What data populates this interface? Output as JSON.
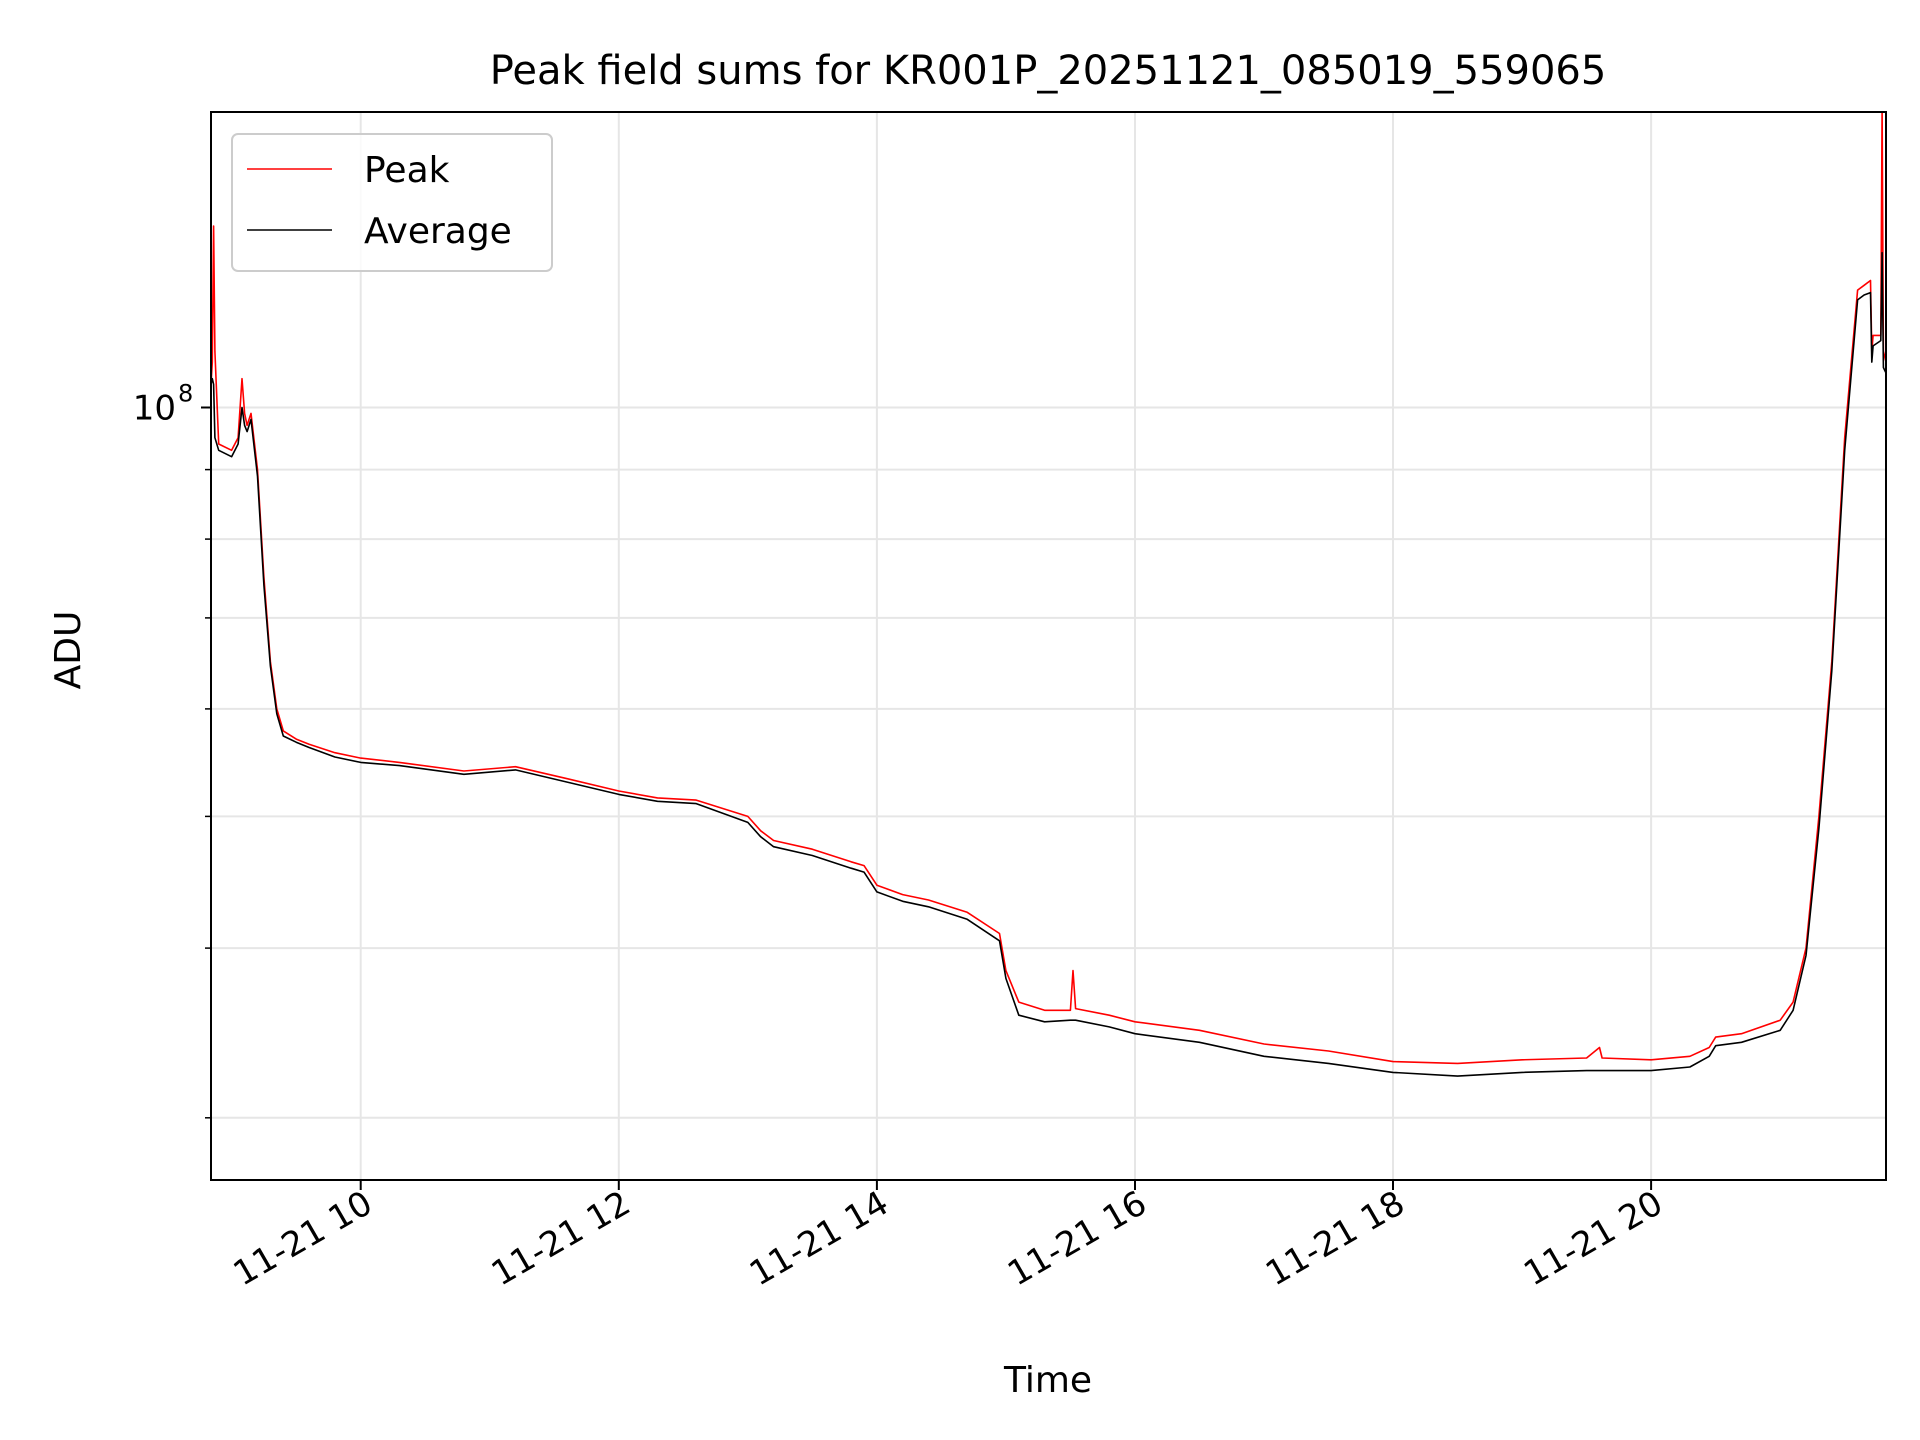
{
  "chart_data": {
    "type": "line",
    "title": "Peak field sums for KR001P_20251121_085019_559065",
    "xlabel": "Time",
    "ylabel": "ADU",
    "yscale": "log",
    "ytick_label": {
      "base": "10",
      "exponent": "8"
    },
    "xtick_labels": [
      "11-21 10",
      "11-21 12",
      "11-21 14",
      "11-21 16",
      "11-21 18",
      "11-21 20"
    ],
    "xtick_hours": [
      10,
      12,
      14,
      16,
      18,
      20
    ],
    "xlim_hours": [
      8.84,
      21.82
    ],
    "ylim": [
      27000000,
      165000000
    ],
    "grid": true,
    "legend": {
      "placement": "top-left",
      "entries": [
        "Peak",
        "Average"
      ]
    },
    "series": [
      {
        "name": "Peak",
        "color": "#ff0000",
        "points": [
          [
            8.84,
            104000000
          ],
          [
            8.85,
            108000000
          ],
          [
            8.86,
            136000000
          ],
          [
            8.87,
            110000000
          ],
          [
            8.9,
            94000000
          ],
          [
            9.0,
            93000000
          ],
          [
            9.05,
            95000000
          ],
          [
            9.08,
            105000000
          ],
          [
            9.1,
            99000000
          ],
          [
            9.12,
            97000000
          ],
          [
            9.15,
            99000000
          ],
          [
            9.2,
            90000000
          ],
          [
            9.25,
            75000000
          ],
          [
            9.3,
            65000000
          ],
          [
            9.35,
            60000000
          ],
          [
            9.4,
            57800000
          ],
          [
            9.5,
            57000000
          ],
          [
            9.6,
            56500000
          ],
          [
            9.8,
            55700000
          ],
          [
            10.0,
            55200000
          ],
          [
            10.3,
            54800000
          ],
          [
            10.8,
            54000000
          ],
          [
            11.2,
            54400000
          ],
          [
            11.6,
            53300000
          ],
          [
            12.0,
            52200000
          ],
          [
            12.3,
            51600000
          ],
          [
            12.6,
            51400000
          ],
          [
            13.0,
            50000000
          ],
          [
            13.1,
            48800000
          ],
          [
            13.2,
            48000000
          ],
          [
            13.5,
            47300000
          ],
          [
            13.8,
            46300000
          ],
          [
            13.9,
            46000000
          ],
          [
            14.0,
            44500000
          ],
          [
            14.2,
            43800000
          ],
          [
            14.4,
            43400000
          ],
          [
            14.7,
            42500000
          ],
          [
            14.95,
            41000000
          ],
          [
            15.0,
            38500000
          ],
          [
            15.1,
            36500000
          ],
          [
            15.3,
            36000000
          ],
          [
            15.5,
            36000000
          ],
          [
            15.52,
            38500000
          ],
          [
            15.54,
            36100000
          ],
          [
            15.8,
            35700000
          ],
          [
            16.0,
            35300000
          ],
          [
            16.5,
            34800000
          ],
          [
            17.0,
            34000000
          ],
          [
            17.5,
            33600000
          ],
          [
            18.0,
            33000000
          ],
          [
            18.5,
            32900000
          ],
          [
            19.0,
            33100000
          ],
          [
            19.5,
            33200000
          ],
          [
            19.6,
            33800000
          ],
          [
            19.62,
            33200000
          ],
          [
            20.0,
            33100000
          ],
          [
            20.3,
            33300000
          ],
          [
            20.45,
            33800000
          ],
          [
            20.5,
            34400000
          ],
          [
            20.7,
            34600000
          ],
          [
            21.0,
            35400000
          ],
          [
            21.1,
            36500000
          ],
          [
            21.2,
            40000000
          ],
          [
            21.3,
            50000000
          ],
          [
            21.4,
            65000000
          ],
          [
            21.5,
            95000000
          ],
          [
            21.6,
            122000000
          ],
          [
            21.65,
            123000000
          ],
          [
            21.7,
            124000000
          ],
          [
            21.71,
            110000000
          ],
          [
            21.72,
            113000000
          ],
          [
            21.78,
            113000000
          ],
          [
            21.79,
            166000000
          ],
          [
            21.8,
            110000000
          ],
          [
            21.82,
            108000000
          ]
        ]
      },
      {
        "name": "Average",
        "color": "#000000",
        "points": [
          [
            8.84,
            104000000
          ],
          [
            8.85,
            105000000
          ],
          [
            8.86,
            104000000
          ],
          [
            8.87,
            95000000
          ],
          [
            8.9,
            93000000
          ],
          [
            9.0,
            92000000
          ],
          [
            9.05,
            94000000
          ],
          [
            9.08,
            100000000
          ],
          [
            9.1,
            97000000
          ],
          [
            9.12,
            96000000
          ],
          [
            9.15,
            98000000
          ],
          [
            9.2,
            89000000
          ],
          [
            9.25,
            74000000
          ],
          [
            9.3,
            64500000
          ],
          [
            9.35,
            59500000
          ],
          [
            9.4,
            57300000
          ],
          [
            9.5,
            56700000
          ],
          [
            9.6,
            56200000
          ],
          [
            9.8,
            55300000
          ],
          [
            10.0,
            54800000
          ],
          [
            10.3,
            54500000
          ],
          [
            10.8,
            53700000
          ],
          [
            11.2,
            54100000
          ],
          [
            11.6,
            53000000
          ],
          [
            12.0,
            51900000
          ],
          [
            12.3,
            51300000
          ],
          [
            12.6,
            51100000
          ],
          [
            13.0,
            49500000
          ],
          [
            13.1,
            48300000
          ],
          [
            13.2,
            47500000
          ],
          [
            13.5,
            46800000
          ],
          [
            13.8,
            45800000
          ],
          [
            13.9,
            45500000
          ],
          [
            14.0,
            44000000
          ],
          [
            14.2,
            43300000
          ],
          [
            14.4,
            42900000
          ],
          [
            14.7,
            42000000
          ],
          [
            14.95,
            40500000
          ],
          [
            15.0,
            38000000
          ],
          [
            15.1,
            35700000
          ],
          [
            15.3,
            35300000
          ],
          [
            15.5,
            35400000
          ],
          [
            15.52,
            35400000
          ],
          [
            15.54,
            35400000
          ],
          [
            15.8,
            35000000
          ],
          [
            16.0,
            34600000
          ],
          [
            16.5,
            34100000
          ],
          [
            17.0,
            33300000
          ],
          [
            17.5,
            32900000
          ],
          [
            18.0,
            32400000
          ],
          [
            18.5,
            32200000
          ],
          [
            19.0,
            32400000
          ],
          [
            19.5,
            32500000
          ],
          [
            19.6,
            32500000
          ],
          [
            19.62,
            32500000
          ],
          [
            20.0,
            32500000
          ],
          [
            20.3,
            32700000
          ],
          [
            20.45,
            33300000
          ],
          [
            20.5,
            33900000
          ],
          [
            20.7,
            34100000
          ],
          [
            21.0,
            34800000
          ],
          [
            21.1,
            36000000
          ],
          [
            21.2,
            39500000
          ],
          [
            21.3,
            49000000
          ],
          [
            21.4,
            64000000
          ],
          [
            21.5,
            93000000
          ],
          [
            21.6,
            120000000
          ],
          [
            21.65,
            121000000
          ],
          [
            21.7,
            121500000
          ],
          [
            21.71,
            108000000
          ],
          [
            21.72,
            111000000
          ],
          [
            21.78,
            112000000
          ],
          [
            21.79,
            130000000
          ],
          [
            21.8,
            107000000
          ],
          [
            21.82,
            106000000
          ]
        ]
      }
    ]
  }
}
